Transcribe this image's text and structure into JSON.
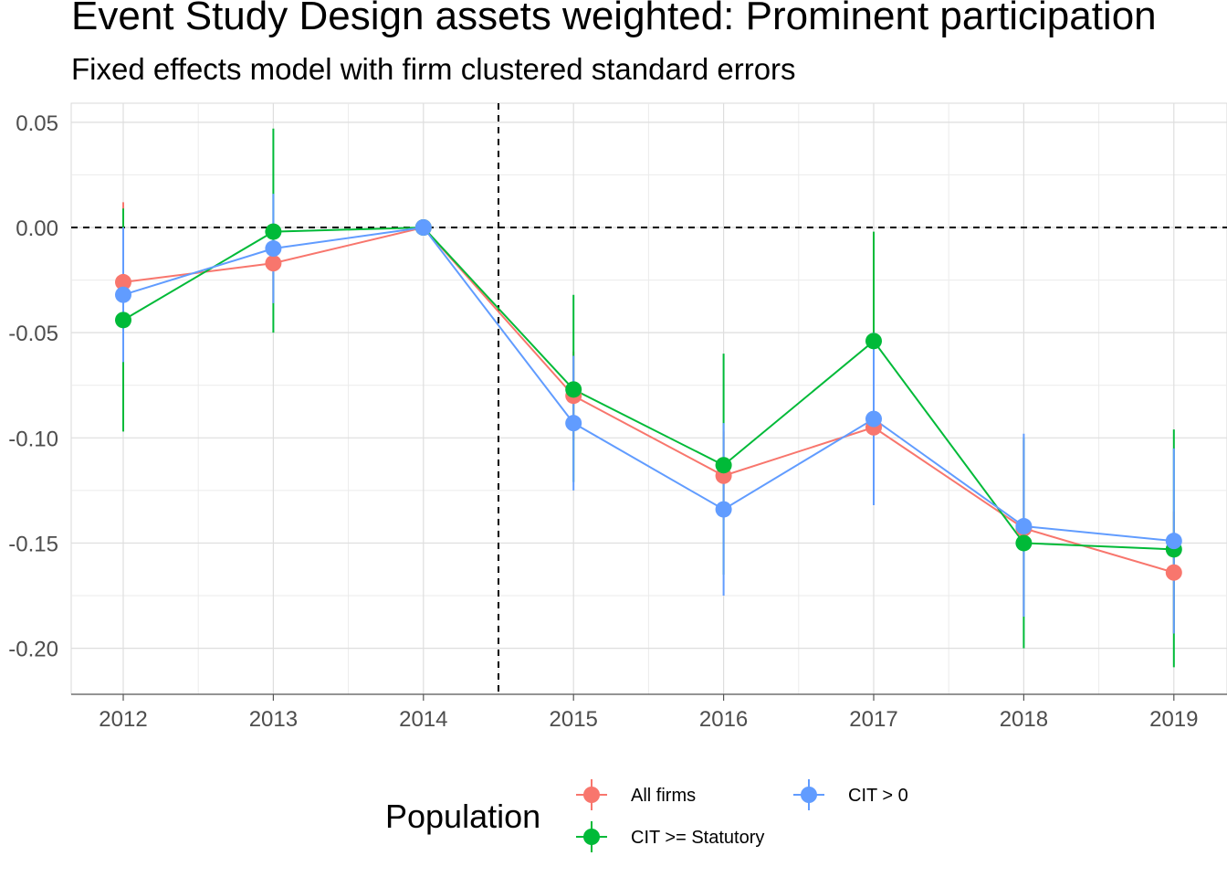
{
  "chart_data": {
    "type": "line",
    "title": "Event Study Design assets weighted: Prominent participation",
    "subtitle": "Fixed effects model with firm clustered standard errors",
    "xlabel": "",
    "ylabel": "",
    "x": [
      "2012",
      "2013",
      "2014",
      "2015",
      "2016",
      "2017",
      "2018",
      "2019"
    ],
    "ylim": [
      -0.222,
      0.058
    ],
    "yticks": [
      0.05,
      0.0,
      -0.05,
      -0.1,
      -0.15,
      -0.2
    ],
    "ytick_labels": [
      "0.05",
      "0.00",
      "-0.05",
      "-0.10",
      "-0.15",
      "-0.20"
    ],
    "hline": 0,
    "vline_between": [
      "2014",
      "2015"
    ],
    "grid": true,
    "legend": {
      "title": "Population",
      "position": "bottom",
      "entries": [
        "All firms",
        "CIT >= Statutory",
        "CIT > 0"
      ]
    },
    "series": [
      {
        "name": "All firms",
        "color": "#F8766D",
        "values": [
          -0.026,
          -0.017,
          0.0,
          -0.08,
          -0.118,
          -0.095,
          -0.143,
          -0.164
        ],
        "ci_low": [
          -0.064,
          -0.036,
          0.0,
          -0.101,
          -0.139,
          -0.118,
          -0.185,
          -0.193
        ],
        "ci_high": [
          0.012,
          0.002,
          0.0,
          -0.059,
          -0.097,
          -0.072,
          -0.101,
          -0.135
        ]
      },
      {
        "name": "CIT >= Statutory",
        "color": "#00BA38",
        "values": [
          -0.044,
          -0.002,
          0.0,
          -0.077,
          -0.113,
          -0.054,
          -0.15,
          -0.153
        ],
        "ci_low": [
          -0.097,
          -0.05,
          0.0,
          -0.121,
          -0.165,
          -0.106,
          -0.2,
          -0.209
        ],
        "ci_high": [
          0.009,
          0.047,
          0.0,
          -0.032,
          -0.06,
          -0.002,
          -0.1,
          -0.096
        ]
      },
      {
        "name": "CIT > 0",
        "color": "#619CFF",
        "values": [
          -0.032,
          -0.01,
          0.0,
          -0.093,
          -0.134,
          -0.091,
          -0.142,
          -0.149
        ],
        "ci_low": [
          -0.064,
          -0.036,
          0.0,
          -0.125,
          -0.175,
          -0.132,
          -0.185,
          -0.193
        ],
        "ci_high": [
          0.0,
          0.016,
          0.0,
          -0.061,
          -0.093,
          -0.05,
          -0.098,
          -0.105
        ]
      }
    ]
  }
}
